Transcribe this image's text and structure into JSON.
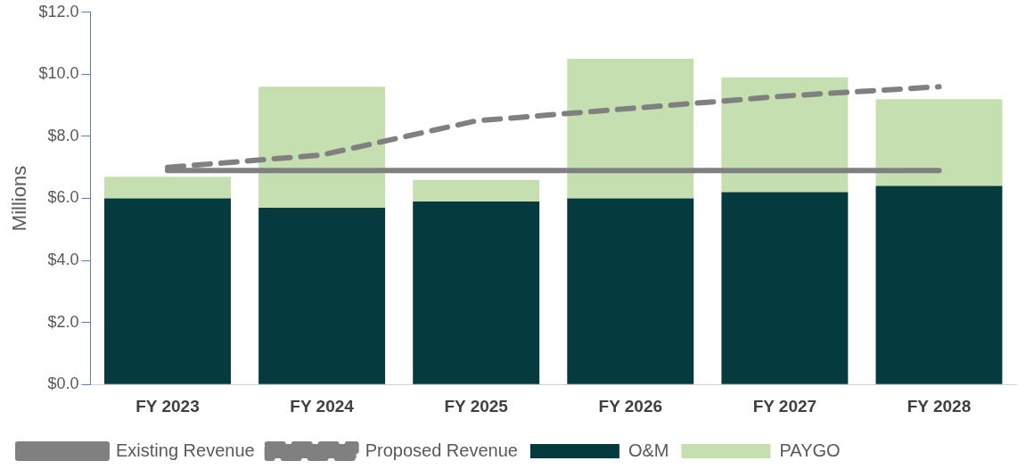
{
  "chart_data": {
    "type": "bar",
    "stacked": true,
    "ylabel": "Millions",
    "categories": [
      "FY 2023",
      "FY 2024",
      "FY 2025",
      "FY 2026",
      "FY 2027",
      "FY 2028"
    ],
    "series": [
      {
        "name": "O&M",
        "color": "#053a3f",
        "values": [
          6.0,
          5.7,
          5.9,
          6.0,
          6.2,
          6.4
        ]
      },
      {
        "name": "PAYGO",
        "color": "#c5dfb1",
        "values": [
          0.7,
          3.9,
          0.7,
          4.5,
          3.7,
          2.8
        ]
      },
      {
        "name": "Existing Revenue",
        "type": "line",
        "color": "#808080",
        "line_style": "solid",
        "values": [
          6.9,
          6.9,
          6.9,
          6.9,
          6.9,
          6.9
        ]
      },
      {
        "name": "Proposed Revenue",
        "type": "line",
        "color": "#808080",
        "line_style": "dashed",
        "values": [
          7.0,
          7.4,
          8.5,
          8.9,
          9.3,
          9.6
        ]
      }
    ],
    "ylim": [
      0,
      12
    ],
    "yticks": [
      {
        "value": 0,
        "label": "$0.0"
      },
      {
        "value": 2,
        "label": "$2.0"
      },
      {
        "value": 4,
        "label": "$4.0"
      },
      {
        "value": 6,
        "label": "$6.0"
      },
      {
        "value": 8,
        "label": "$8.0"
      },
      {
        "value": 10,
        "label": "$10.0"
      },
      {
        "value": 12,
        "label": "$12.0"
      }
    ],
    "grid": false,
    "legend": "bottom",
    "marker": "none"
  }
}
